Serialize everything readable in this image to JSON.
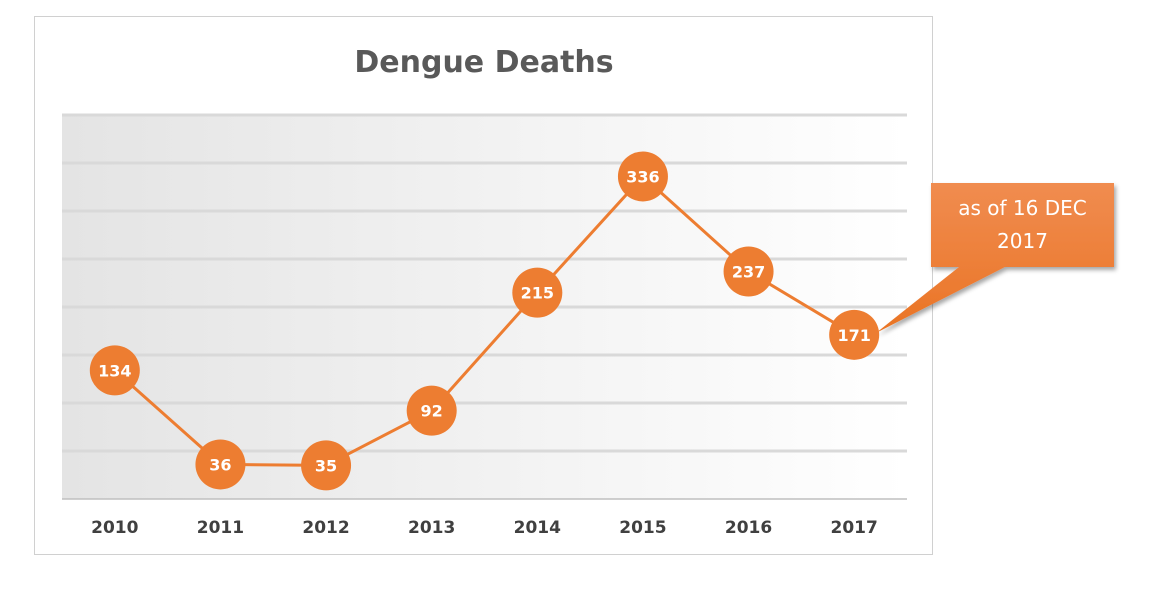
{
  "chart_data": {
    "type": "line",
    "title": "Dengue Deaths",
    "categories": [
      "2010",
      "2011",
      "2012",
      "2013",
      "2014",
      "2015",
      "2016",
      "2017"
    ],
    "values": [
      134,
      36,
      35,
      92,
      215,
      336,
      237,
      171
    ],
    "ylim": [
      0,
      400
    ],
    "grid": true,
    "legend": "none",
    "annotation": {
      "category": "2017",
      "lines": [
        "as of  16 DEC",
        "2017"
      ]
    }
  },
  "colors": {
    "series": "#ED7D31",
    "gridline": "#d9d9d9",
    "marker_text": "#ffffff",
    "callout_fill": "#ED7D31",
    "title": "#595959",
    "tick": "#404040"
  }
}
